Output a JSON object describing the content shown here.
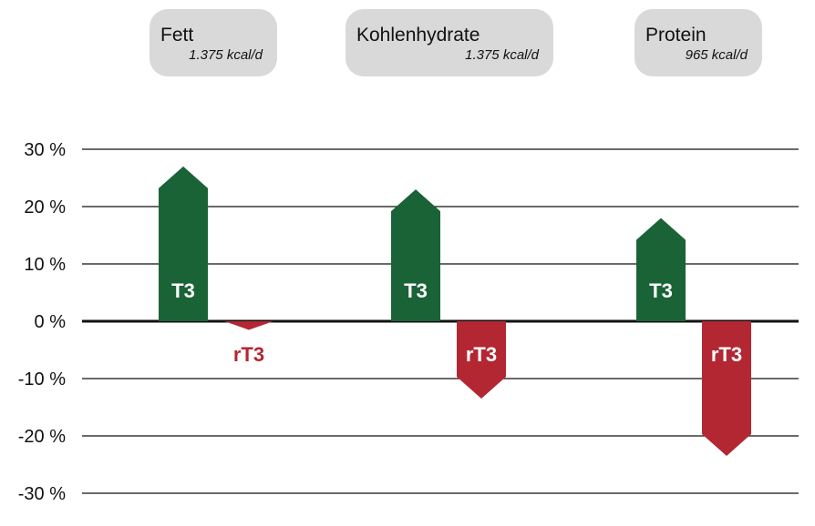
{
  "chart_data": {
    "type": "bar",
    "categories": [
      "Fett",
      "Kohlenhydrate",
      "Protein"
    ],
    "category_kcal": [
      "1.375 kcal/d",
      "1.375 kcal/d",
      "965 kcal/d"
    ],
    "series": [
      {
        "name": "T3",
        "values": [
          27,
          23,
          18
        ],
        "color": "#1a6337"
      },
      {
        "name": "rT3",
        "values": [
          -1.5,
          -13.5,
          -23.5
        ],
        "color": "#b32732"
      }
    ],
    "yticks": [
      30,
      20,
      10,
      0,
      -10,
      -20,
      -30
    ],
    "ytick_labels": [
      "30 %",
      "20 %",
      "10 %",
      "0 %",
      "-10 %",
      "-20 %",
      "-30 %"
    ],
    "ylim": [
      -30,
      30
    ],
    "grid": true,
    "xlabel": "",
    "ylabel": "",
    "title": ""
  }
}
